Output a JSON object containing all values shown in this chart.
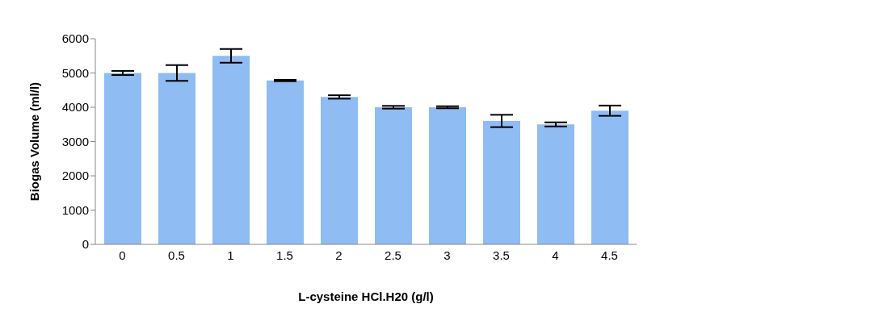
{
  "chart_data": {
    "type": "bar",
    "xlabel": "L-cysteine HCl.H20 (g/l)",
    "ylabel": "Biogas Volume (ml/l)",
    "categories": [
      "0",
      "0.5",
      "1",
      "1.5",
      "2",
      "2.5",
      "3",
      "3.5",
      "4",
      "4.5"
    ],
    "values": [
      5000,
      5000,
      5500,
      4780,
      4300,
      4000,
      4000,
      3600,
      3500,
      3900
    ],
    "errors": [
      60,
      230,
      200,
      20,
      50,
      40,
      30,
      180,
      60,
      150
    ],
    "color": "#8fbcf2",
    "ylim": [
      0,
      6000
    ],
    "yticks": [
      0,
      1000,
      2000,
      3000,
      4000,
      5000,
      6000
    ],
    "grid": false,
    "legend": false
  }
}
